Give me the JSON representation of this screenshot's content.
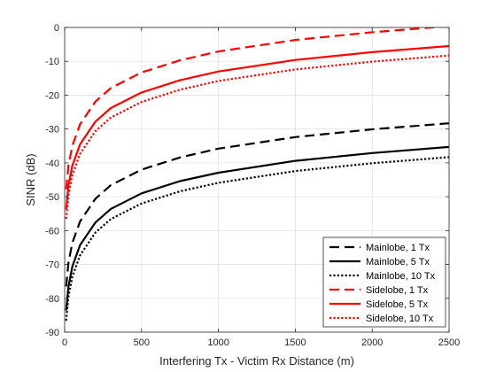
{
  "chart_data": {
    "type": "line",
    "title": "",
    "xlabel": "Interfering Tx - Victim Rx Distance (m)",
    "ylabel": "SINR (dB)",
    "xlim": [
      0,
      2500
    ],
    "ylim": [
      -90,
      0
    ],
    "xticks": [
      0,
      500,
      1000,
      1500,
      2000,
      2500
    ],
    "yticks": [
      0,
      -10,
      -20,
      -30,
      -40,
      -50,
      -60,
      -70,
      -80,
      -90
    ],
    "xtick_labels": [
      "0",
      "500",
      "1000",
      "1500",
      "2000",
      "2500"
    ],
    "ytick_labels": [
      "0",
      "-10",
      "-20",
      "-30",
      "-40",
      "-50",
      "-60",
      "-70",
      "-80",
      "-90"
    ],
    "grid": true,
    "legend_position": "bottom-right",
    "x": [
      10,
      25,
      50,
      100,
      200,
      300,
      500,
      750,
      1000,
      1500,
      2000,
      2500
    ],
    "series": [
      {
        "name": "Mainlobe, 1 Tx",
        "color": "#000000",
        "style": "dashed",
        "values": [
          -76.5,
          -69.4,
          -63.6,
          -57.3,
          -50.6,
          -46.6,
          -42.0,
          -38.4,
          -35.8,
          -32.4,
          -30.1,
          -28.3
        ]
      },
      {
        "name": "Mainlobe, 5 Tx",
        "color": "#000000",
        "style": "solid",
        "values": [
          -83.6,
          -76.5,
          -70.6,
          -64.3,
          -57.6,
          -53.6,
          -49.0,
          -45.4,
          -42.9,
          -39.4,
          -37.1,
          -35.3
        ]
      },
      {
        "name": "Mainlobe, 10 Tx",
        "color": "#000000",
        "style": "dotted",
        "values": [
          -86.6,
          -79.5,
          -73.6,
          -67.3,
          -60.6,
          -56.6,
          -52.0,
          -48.4,
          -45.9,
          -42.4,
          -40.1,
          -38.3
        ]
      },
      {
        "name": "Sidelobe, 1 Tx",
        "color": "#ff0000",
        "style": "dashed",
        "values": [
          -47.8,
          -40.7,
          -34.9,
          -28.6,
          -21.9,
          -17.9,
          -13.3,
          -9.7,
          -7.1,
          -3.7,
          -1.4,
          0.4
        ]
      },
      {
        "name": "Sidelobe, 5 Tx",
        "color": "#ff0000",
        "style": "solid",
        "values": [
          -53.7,
          -46.6,
          -40.8,
          -34.5,
          -27.8,
          -23.8,
          -19.2,
          -15.6,
          -13.0,
          -9.6,
          -7.3,
          -5.5
        ]
      },
      {
        "name": "Sidelobe, 10 Tx",
        "color": "#ff0000",
        "style": "dotted",
        "values": [
          -56.5,
          -49.4,
          -43.6,
          -37.3,
          -30.6,
          -26.6,
          -22.0,
          -18.4,
          -15.8,
          -12.4,
          -10.1,
          -8.3
        ]
      }
    ]
  }
}
